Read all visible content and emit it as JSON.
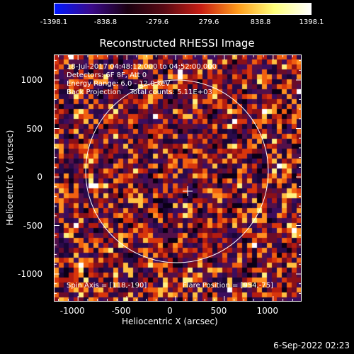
{
  "title": "Reconstructed RHESSI Image",
  "colorbar": {
    "ticks": [
      "-1398.1",
      "-838.8",
      "-279.6",
      "279.6",
      "838.8",
      "1398.1"
    ]
  },
  "axes": {
    "xlabel": "Heliocentric X (arcsec)",
    "ylabel": "Heliocentric Y (arcsec)",
    "xticks": [
      "-1000",
      "-500",
      "0",
      "500",
      "1000"
    ],
    "yticks": [
      "1000",
      "500",
      "0",
      "-500",
      "-1000"
    ],
    "xticks_values": [
      -1000,
      -500,
      0,
      500,
      1000
    ],
    "yticks_values": [
      1000,
      500,
      0,
      -500,
      -1000
    ]
  },
  "info": {
    "time_range": "18-Jul-2017 04:48:12.000 to 04:52:00.000",
    "detectors": "Detectors: 6F 8F, Att 0",
    "energy_range": "Energy Range: 6.0 - 12.0 keV",
    "method_counts": "Back Projection    Total counts: 5.11E+03",
    "spin_axis": "Spin Axis = [118,-190]",
    "flare_position": "Flare Position = [954,-75]"
  },
  "timestamp": "6-Sep-2022 02:23",
  "colors": {
    "background": "#000000",
    "foreground": "#ffffff",
    "colormap": [
      "#0018ff",
      "#3a0a8a",
      "#1a0010",
      "#5a0a14",
      "#c81e14",
      "#ff9a1a",
      "#ffff7a",
      "#ffffff"
    ]
  }
}
